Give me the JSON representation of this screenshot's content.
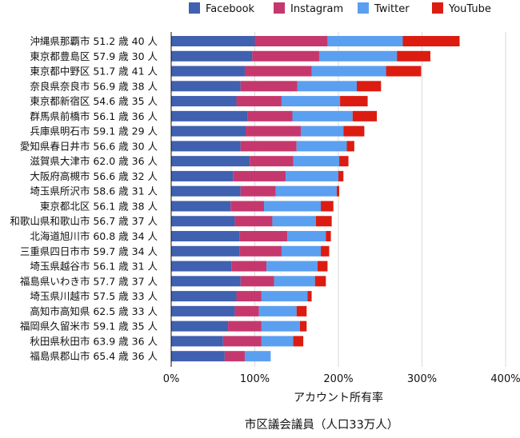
{
  "chart_data": {
    "type": "bar",
    "orientation": "horizontal",
    "stacked": true,
    "title": "市区議会議員（人口33万人）",
    "xlabel": "アカウント所有率",
    "ylabel": "",
    "xlim": [
      0,
      400
    ],
    "xticks": [
      0,
      100,
      200,
      300,
      400
    ],
    "xtick_labels": [
      "0%",
      "100%",
      "200%",
      "300%",
      "400%"
    ],
    "grid": true,
    "legend_position": "top",
    "categories": [
      "沖縄県那覇市 51.2 歳 40 人",
      "東京都豊島区 57.9 歳 30 人",
      "東京都中野区 51.7 歳 41 人",
      "奈良県奈良市 56.9 歳 38 人",
      "東京都新宿区 54.6 歳 35 人",
      "群馬県前橋市 56.1 歳 36 人",
      "兵庫県明石市 59.1 歳 29 人",
      "愛知県春日井市 56.6 歳 30 人",
      "滋賀県大津市 62.0 歳 36 人",
      "大阪府高槻市 56.6 歳 32 人",
      "埼玉県所沢市 58.6 歳 31 人",
      "東京都北区 56.1 歳 38 人",
      "和歌山県和歌山市 56.7 歳 37 人",
      "北海道旭川市 60.8 歳 34 人",
      "三重県四日市市 59.7 歳 34 人",
      "埼玉県越谷市 56.1 歳 31 人",
      "福島県いわき市 57.7 歳 37 人",
      "埼玉県川越市 57.5 歳 33 人",
      "高知市高知県 62.5 歳 33 人",
      "福岡県久留米市 59.1 歳 35 人",
      "秋田県秋田市 63.9 歳 36 人",
      "福島県郡山市 65.4 歳 36 人"
    ],
    "series": [
      {
        "name": "Facebook",
        "color": "#4060b0",
        "values": [
          100,
          97,
          88,
          83,
          78,
          91,
          89,
          83,
          94,
          74,
          83,
          71,
          76,
          82,
          82,
          72,
          83,
          78,
          76,
          68,
          62,
          64
        ]
      },
      {
        "name": "Instagram",
        "color": "#c5386e",
        "values": [
          87,
          80,
          80,
          68,
          54,
          54,
          66,
          67,
          52,
          63,
          42,
          40,
          45,
          57,
          50,
          42,
          40,
          30,
          29,
          40,
          46,
          24
        ]
      },
      {
        "name": "Twitter",
        "color": "#5b9ff0",
        "values": [
          90,
          93,
          89,
          71,
          70,
          72,
          51,
          60,
          55,
          63,
          73,
          68,
          52,
          46,
          47,
          61,
          49,
          55,
          45,
          46,
          38,
          31
        ]
      },
      {
        "name": "YouTube",
        "color": "#dc1c10",
        "values": [
          68,
          40,
          42,
          29,
          33,
          29,
          25,
          9,
          11,
          6,
          3,
          15,
          19,
          6,
          10,
          12,
          13,
          5,
          12,
          8,
          12,
          0
        ]
      }
    ]
  }
}
